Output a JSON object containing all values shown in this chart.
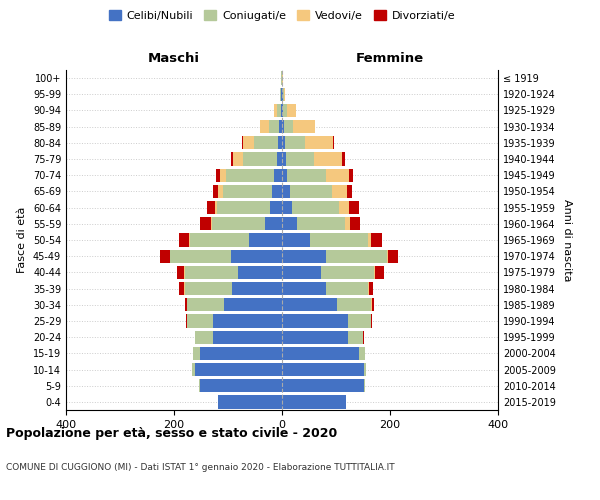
{
  "age_groups": [
    "0-4",
    "5-9",
    "10-14",
    "15-19",
    "20-24",
    "25-29",
    "30-34",
    "35-39",
    "40-44",
    "45-49",
    "50-54",
    "55-59",
    "60-64",
    "65-69",
    "70-74",
    "75-79",
    "80-84",
    "85-89",
    "90-94",
    "95-99",
    "100+"
  ],
  "birth_years": [
    "2015-2019",
    "2010-2014",
    "2005-2009",
    "2000-2004",
    "1995-1999",
    "1990-1994",
    "1985-1989",
    "1980-1984",
    "1975-1979",
    "1970-1974",
    "1965-1969",
    "1960-1964",
    "1955-1959",
    "1950-1954",
    "1945-1949",
    "1940-1944",
    "1935-1939",
    "1930-1934",
    "1925-1929",
    "1920-1924",
    "≤ 1919"
  ],
  "males_celibi": [
    118,
    152,
    162,
    152,
    128,
    128,
    108,
    92,
    82,
    95,
    62,
    32,
    22,
    18,
    15,
    10,
    8,
    5,
    2,
    1,
    0
  ],
  "males_coniugati": [
    1,
    2,
    4,
    13,
    33,
    48,
    68,
    88,
    98,
    112,
    108,
    98,
    98,
    92,
    88,
    62,
    44,
    20,
    8,
    2,
    1
  ],
  "males_vedovi": [
    0,
    0,
    0,
    0,
    0,
    0,
    0,
    1,
    1,
    1,
    2,
    2,
    4,
    8,
    12,
    18,
    20,
    15,
    5,
    1,
    0
  ],
  "males_divorziati": [
    0,
    0,
    0,
    0,
    1,
    2,
    4,
    10,
    14,
    18,
    18,
    20,
    15,
    10,
    8,
    5,
    2,
    0,
    0,
    0,
    0
  ],
  "females_nubili": [
    118,
    152,
    152,
    142,
    122,
    122,
    102,
    82,
    72,
    82,
    52,
    28,
    18,
    14,
    10,
    8,
    5,
    4,
    2,
    1,
    0
  ],
  "females_coniugate": [
    1,
    2,
    4,
    11,
    28,
    43,
    63,
    78,
    98,
    112,
    108,
    88,
    88,
    78,
    72,
    52,
    37,
    17,
    8,
    2,
    0
  ],
  "females_vedove": [
    0,
    0,
    0,
    0,
    0,
    0,
    1,
    1,
    2,
    2,
    4,
    10,
    18,
    28,
    42,
    52,
    52,
    40,
    15,
    3,
    1
  ],
  "females_divorziate": [
    0,
    0,
    0,
    0,
    1,
    2,
    4,
    8,
    16,
    18,
    22,
    18,
    18,
    10,
    8,
    5,
    2,
    0,
    0,
    0,
    0
  ],
  "colors_celibi": "#4472c4",
  "colors_coniugati": "#b5c99a",
  "colors_vedovi": "#f5c87e",
  "colors_divorziati": "#c00000",
  "xlim_min": -400,
  "xlim_max": 400,
  "xticks": [
    -400,
    -200,
    0,
    200,
    400
  ],
  "xticklabels": [
    "400",
    "200",
    "0",
    "200",
    "400"
  ],
  "title_main": "Popolazione per età, sesso e stato civile - 2020",
  "title_sub": "COMUNE DI CUGGIONO (MI) - Dati ISTAT 1° gennaio 2020 - Elaborazione TUTTITALIA.IT",
  "ylabel_left": "Fasce di età",
  "ylabel_right": "Anni di nascita",
  "label_maschi": "Maschi",
  "label_femmine": "Femmine",
  "legend_labels": [
    "Celibi/Nubili",
    "Coniugati/e",
    "Vedovi/e",
    "Divorziati/e"
  ],
  "bg_color": "#ffffff",
  "grid_color": "#cccccc"
}
